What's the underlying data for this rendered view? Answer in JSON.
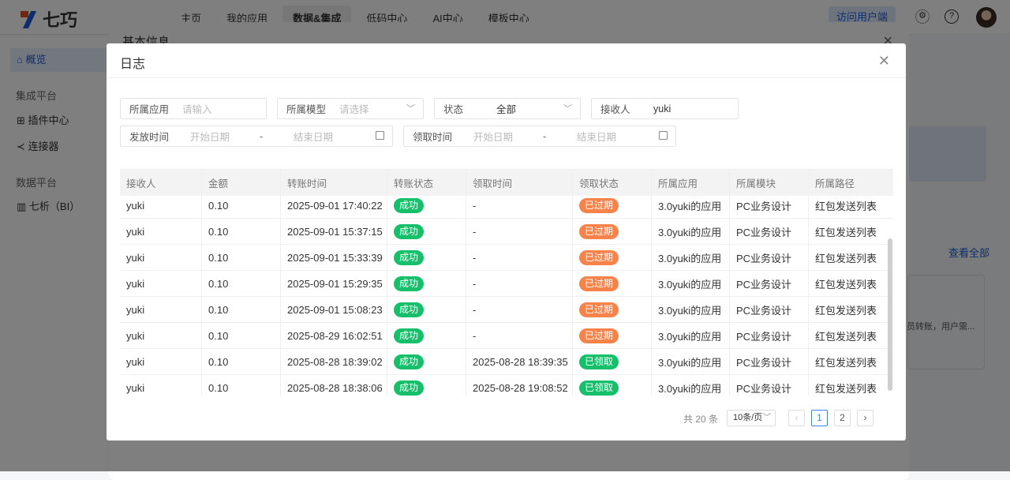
{
  "app": {
    "logo": "七巧",
    "nav": [
      "主页",
      "我的应用",
      "数据&集成",
      "低码中心",
      "AI中心",
      "模板中心"
    ],
    "nav_active": 2,
    "visit_button": "访问用户端"
  },
  "sidebar": {
    "overview": "概览",
    "group1": "集成平台",
    "plugin_center": "插件中心",
    "connector": "连接器",
    "group2": "数据平台",
    "bi": "七析（BI）"
  },
  "background_modal": {
    "title": "基本信息",
    "view_all": "查看全部",
    "card_text": "员转账，用户需..."
  },
  "modal": {
    "title": "日志",
    "filters": {
      "app": {
        "label": "所属应用",
        "placeholder": "请输入"
      },
      "model": {
        "label": "所属模型",
        "placeholder": "请选择"
      },
      "status": {
        "label": "状态",
        "value": "全部"
      },
      "receiver": {
        "label": "接收人",
        "value": "yuki"
      },
      "send_time": {
        "label": "发放时间",
        "start": "开始日期",
        "sep": "-",
        "end": "结束日期"
      },
      "claim_time": {
        "label": "领取时间",
        "start": "开始日期",
        "sep": "-",
        "end": "结束日期"
      }
    },
    "columns": [
      "接收人",
      "金额",
      "转账时间",
      "转账状态",
      "领取时间",
      "领取状态",
      "所属应用",
      "所属模块",
      "所属路径"
    ],
    "rows": [
      [
        "yuki",
        "0.10",
        "2025-09-01 17:40:22",
        "成功",
        "-",
        "已过期",
        "3.0yuki的应用",
        "PC业务设计",
        "红包发送列表"
      ],
      [
        "yuki",
        "0.10",
        "2025-09-01 15:37:15",
        "成功",
        "-",
        "已过期",
        "3.0yuki的应用",
        "PC业务设计",
        "红包发送列表"
      ],
      [
        "yuki",
        "0.10",
        "2025-09-01 15:33:39",
        "成功",
        "-",
        "已过期",
        "3.0yuki的应用",
        "PC业务设计",
        "红包发送列表"
      ],
      [
        "yuki",
        "0.10",
        "2025-09-01 15:29:35",
        "成功",
        "-",
        "已过期",
        "3.0yuki的应用",
        "PC业务设计",
        "红包发送列表"
      ],
      [
        "yuki",
        "0.10",
        "2025-09-01 15:08:23",
        "成功",
        "-",
        "已过期",
        "3.0yuki的应用",
        "PC业务设计",
        "红包发送列表"
      ],
      [
        "yuki",
        "0.10",
        "2025-08-29 16:02:51",
        "成功",
        "-",
        "已过期",
        "3.0yuki的应用",
        "PC业务设计",
        "红包发送列表"
      ],
      [
        "yuki",
        "0.10",
        "2025-08-28 18:39:02",
        "成功",
        "2025-08-28 18:39:35",
        "已领取",
        "3.0yuki的应用",
        "PC业务设计",
        "红包发送列表"
      ],
      [
        "yuki",
        "0.10",
        "2025-08-28 18:38:06",
        "成功",
        "2025-08-28 19:08:52",
        "已领取",
        "3.0yuki的应用",
        "PC业务设计",
        "红包发送列表"
      ]
    ],
    "status_colors": {
      "成功": "#16c06a",
      "已过期": "#f7824a",
      "已领取": "#16c06a"
    },
    "pagination": {
      "total": "共 20 条",
      "page_size": "10条/页",
      "pages": [
        "1",
        "2"
      ],
      "current": "1"
    }
  }
}
